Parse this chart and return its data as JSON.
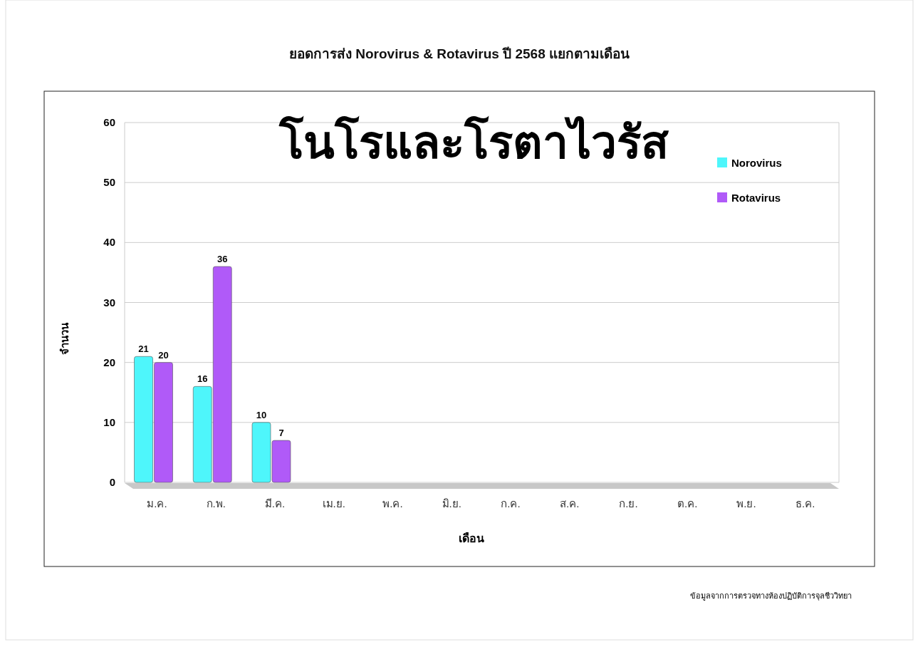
{
  "chart_data": {
    "type": "bar",
    "title": "ยอดการส่ง Norovirus & Rotavirus ปี 2568 แยกตามเดือน",
    "subtitle": "โนโรและโรตาไวรัส",
    "xlabel": "เดือน",
    "ylabel": "จำนวน",
    "categories": [
      "ม.ค.",
      "ก.พ.",
      "มี.ค.",
      "เม.ย.",
      "พ.ค.",
      "มิ.ย.",
      "ก.ค.",
      "ส.ค.",
      "ก.ย.",
      "ต.ค.",
      "พ.ย.",
      "ธ.ค."
    ],
    "series": [
      {
        "name": "Norovirus",
        "color": "#4ef6fb",
        "values": [
          21,
          16,
          10,
          null,
          null,
          null,
          null,
          null,
          null,
          null,
          null,
          null
        ]
      },
      {
        "name": "Rotavirus",
        "color": "#b05af8",
        "values": [
          20,
          36,
          7,
          null,
          null,
          null,
          null,
          null,
          null,
          null,
          null,
          null
        ]
      }
    ],
    "ylim": [
      0,
      60
    ],
    "yticks": [
      0,
      10,
      20,
      30,
      40,
      50,
      60
    ],
    "grid": "y",
    "legend": "top right",
    "data_labels": true,
    "annotations": [
      "ข้อมูลจากการตรวจทางห้องปฏิบัติการจุลชีววิทยา"
    ]
  }
}
